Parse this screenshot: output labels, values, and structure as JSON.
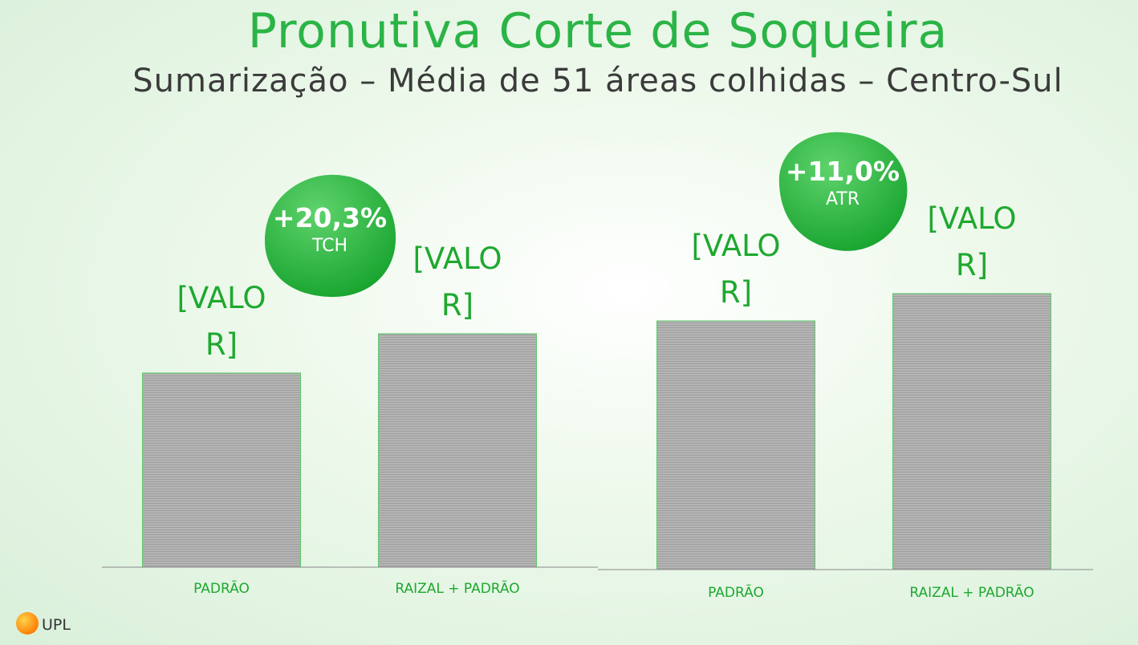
{
  "header": {
    "title": "Pronutiva Corte de Soqueira",
    "subtitle": "Sumarização – Média de 51 áreas colhidas – Centro-Sul"
  },
  "chart_data": [
    {
      "type": "bar",
      "categories": [
        "PADRÃO",
        "RAIZAL + PADRÃO"
      ],
      "values": [
        242,
        291
      ],
      "value_labels": [
        "[VALOR]",
        "[VALOR]"
      ],
      "color": "#b3b3b3",
      "ylim": [
        0,
        300
      ],
      "annotation": {
        "text": "+20,3%",
        "label": "TCH"
      }
    },
    {
      "type": "bar",
      "categories": [
        "PADRÃO",
        "RAIZAL + PADRÃO"
      ],
      "values": [
        310,
        344
      ],
      "value_labels": [
        "[VALOR]",
        "[VALOR]"
      ],
      "color": "#b3b3b3",
      "ylim": [
        0,
        345
      ],
      "annotation": {
        "text": "+11,0%",
        "label": "ATR"
      }
    }
  ],
  "logo": "UPL"
}
